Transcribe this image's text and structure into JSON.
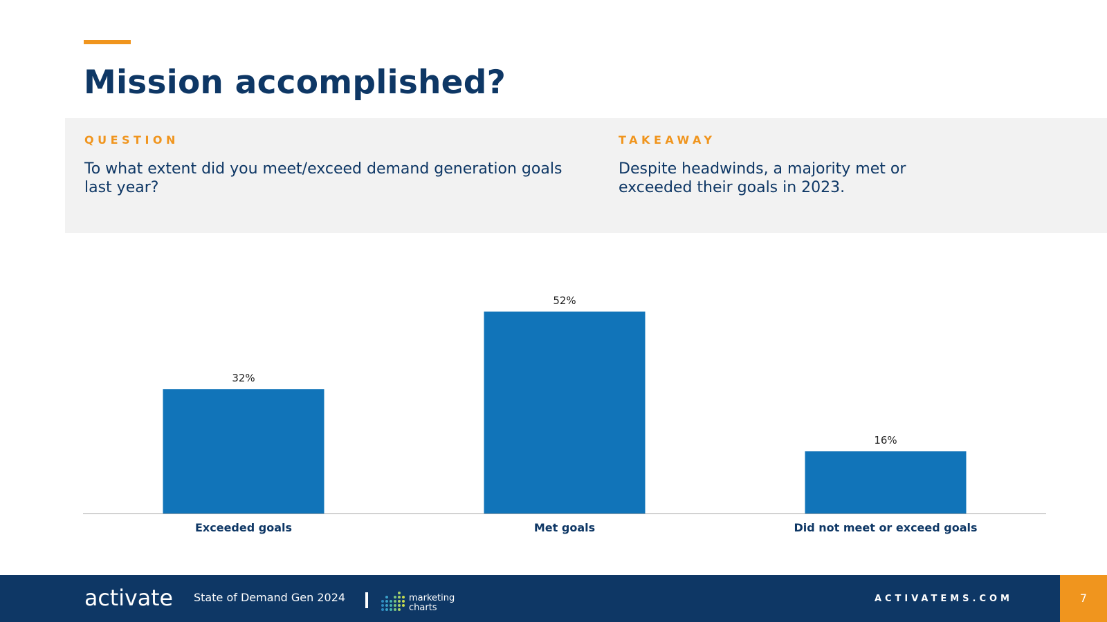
{
  "slide": {
    "title": "Mission accomplished?",
    "accent_color": "#F0951E",
    "brand_color": "#0E3765"
  },
  "info": {
    "question_label": "QUESTION",
    "question_text": "To what extent did you meet/exceed demand generation goals last year?",
    "takeaway_label": "TAKEAWAY",
    "takeaway_text": "Despite headwinds, a majority met or exceeded their goals in 2023."
  },
  "chart_data": {
    "type": "bar",
    "title": "",
    "categories": [
      "Exceeded goals",
      "Met goals",
      "Did not meet or exceed goals"
    ],
    "values": [
      32,
      52,
      16
    ],
    "value_labels": [
      "32%",
      "52%",
      "16%"
    ],
    "xlabel": "",
    "ylabel": "",
    "ylim": [
      0,
      60
    ],
    "grid": false,
    "legend": "none",
    "bar_color": "#1174B9"
  },
  "footer": {
    "brand_name": "activate",
    "subtitle": "State of Demand Gen 2024",
    "partner_line1": "marketing",
    "partner_line2": "charts",
    "site_url": "ACTIVATEMS.COM",
    "page_number": "7"
  }
}
